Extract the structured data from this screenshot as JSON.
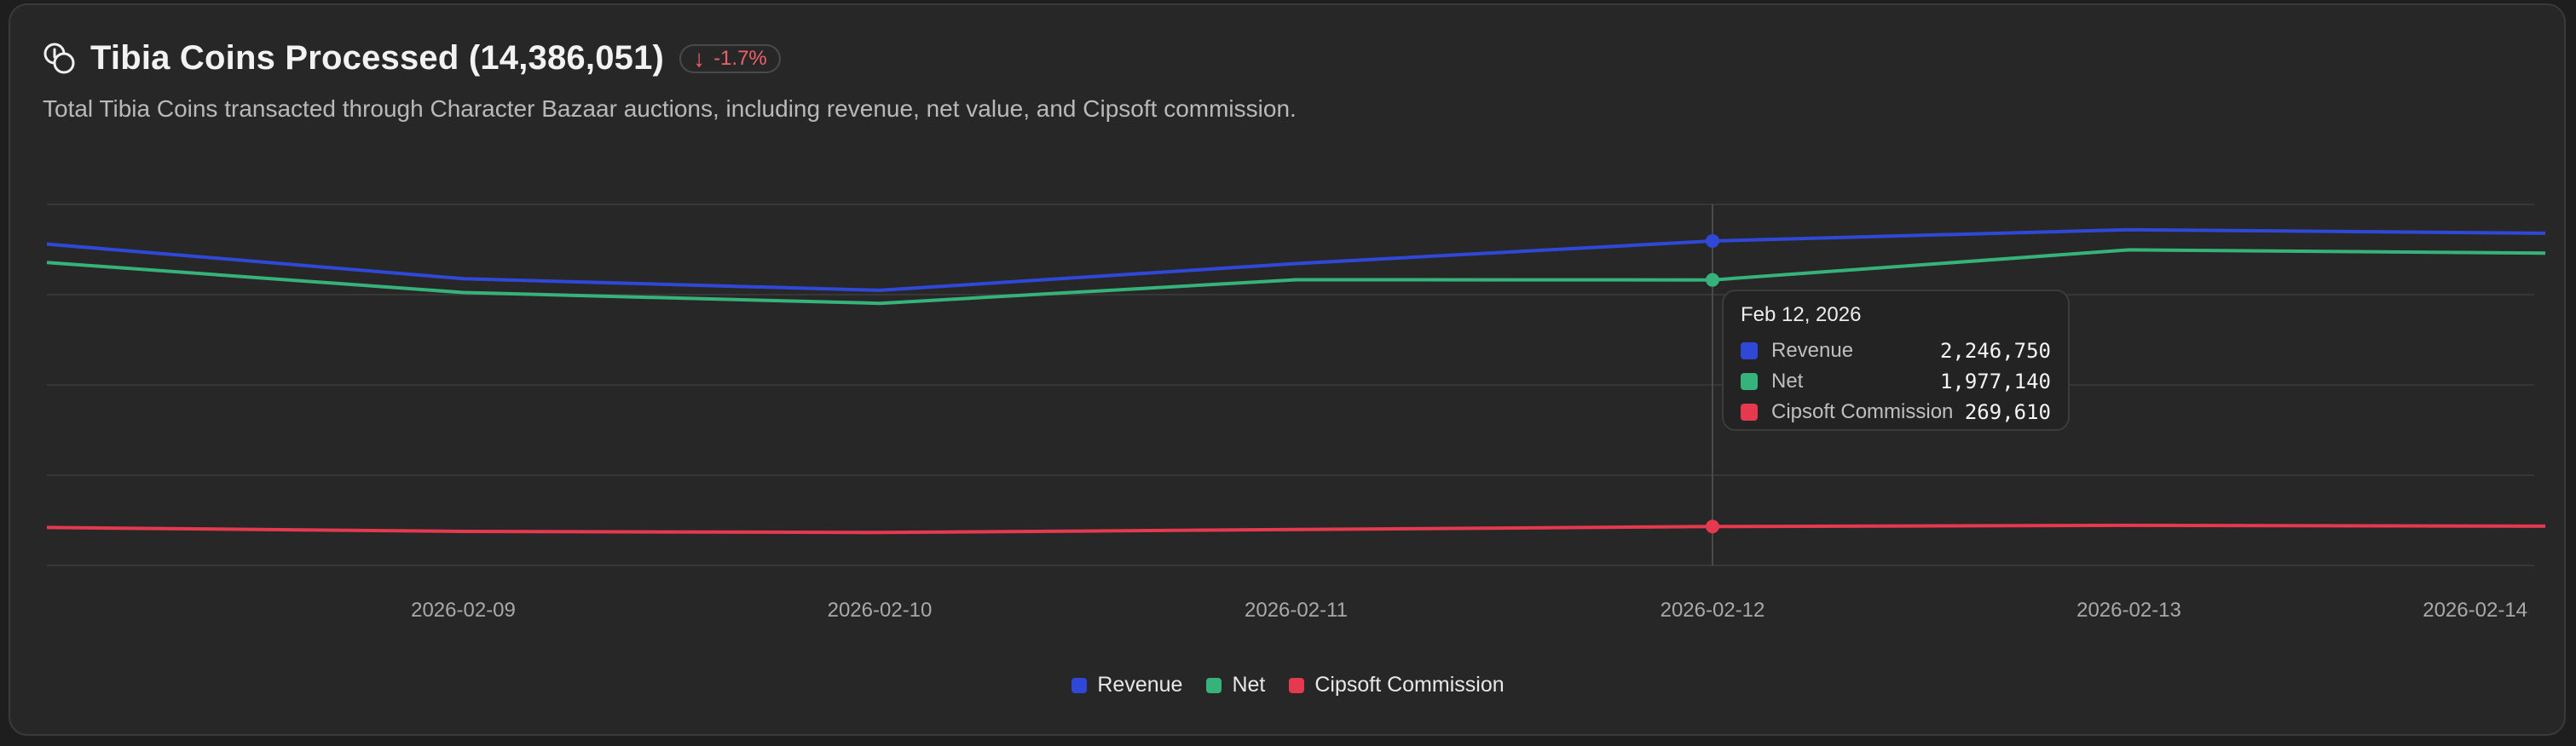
{
  "header": {
    "title": "Tibia Coins Processed (14,386,051)",
    "delta": "-1.7%",
    "description": "Total Tibia Coins transacted through Character Bazaar auctions, including revenue, net value, and Cipsoft commission."
  },
  "colors": {
    "revenue": "#3048d8",
    "net": "#36b37a",
    "commission": "#e5394f",
    "negative_delta": "#f0606b"
  },
  "chart_data": {
    "type": "line",
    "title": "Tibia Coins Processed (14,386,051)",
    "x_ticks": [
      "2026-02-09",
      "2026-02-10",
      "2026-02-11",
      "2026-02-12",
      "2026-02-13",
      "2026-02-14"
    ],
    "x": [
      "2026-02-08",
      "2026-02-09",
      "2026-02-10",
      "2026-02-11",
      "2026-02-12",
      "2026-02-13",
      "2026-02-14"
    ],
    "series": [
      {
        "name": "Revenue",
        "values": [
          2225000,
          1985000,
          1905000,
          2090000,
          2246750,
          2325000,
          2300000
        ]
      },
      {
        "name": "Net",
        "values": [
          2098000,
          1890000,
          1815000,
          1978000,
          1977140,
          2185000,
          2163000
        ]
      },
      {
        "name": "Cipsoft Commission",
        "values": [
          263000,
          236000,
          228000,
          249000,
          269610,
          278000,
          272000
        ]
      }
    ],
    "ylim": [
      0,
      2500000
    ],
    "grid": true,
    "legend_position": "bottom-center"
  },
  "tooltip": {
    "date": "Feb 12, 2026",
    "rows": [
      {
        "label": "Revenue",
        "value": "2,246,750"
      },
      {
        "label": "Net",
        "value": "1,977,140"
      },
      {
        "label": "Cipsoft Commission",
        "value": "269,610"
      }
    ]
  },
  "legend": [
    "Revenue",
    "Net",
    "Cipsoft Commission"
  ]
}
